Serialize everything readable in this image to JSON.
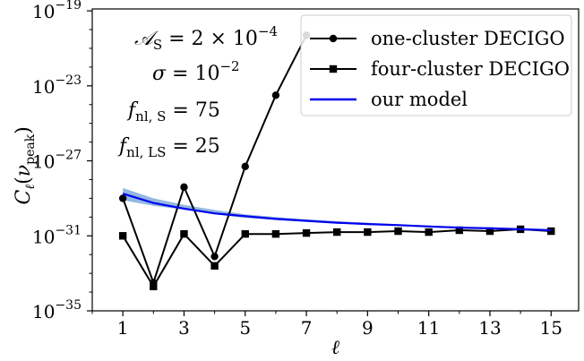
{
  "chart_data": {
    "type": "line",
    "xlabel": "ℓ",
    "ylabel": "C_ℓ(ν_peak)",
    "yscale": "log",
    "xlim": [
      0.0,
      15.9
    ],
    "ylim_exponents": [
      -35,
      -18.9
    ],
    "x_ticks": [
      1,
      3,
      5,
      7,
      9,
      11,
      13,
      15
    ],
    "y_ticks_exp": [
      -35,
      -31,
      -27,
      -23,
      -19
    ],
    "grid": false,
    "legend_position": "top-right",
    "annotations": [
      {
        "base": "𝒜",
        "sub": "S",
        "rest": " = 2 × 10",
        "sup": "−4"
      },
      {
        "base": "σ",
        "sub": "",
        "rest": " = 10",
        "sup": "−2"
      },
      {
        "base": "f",
        "sub": "nl, S",
        "rest": " = 75",
        "sup": ""
      },
      {
        "base": "f",
        "sub": "nl, LS",
        "rest": " = 25",
        "sup": ""
      }
    ],
    "series": [
      {
        "name": "one-cluster DECIGO",
        "marker": "circle",
        "color": "#000000",
        "x": [
          1,
          2,
          3,
          4,
          5,
          6,
          7
        ],
        "log10_y": [
          -29.0,
          -33.5,
          -28.4,
          -32.1,
          -27.3,
          -23.5,
          -20.3
        ]
      },
      {
        "name": "four-cluster DECIGO",
        "marker": "square",
        "color": "#000000",
        "x": [
          1,
          2,
          3,
          4,
          5,
          6,
          7,
          8,
          9,
          10,
          11,
          12,
          13,
          14,
          15
        ],
        "log10_y": [
          -31.0,
          -33.7,
          -30.9,
          -32.6,
          -30.9,
          -30.9,
          -30.85,
          -30.8,
          -30.8,
          -30.75,
          -30.8,
          -30.7,
          -30.75,
          -30.65,
          -30.75
        ]
      },
      {
        "name": "our model",
        "marker": "none",
        "color": "#0000ee",
        "band_color": "#8cb4de",
        "x": [
          1,
          2,
          3,
          4,
          5,
          6,
          7,
          8,
          9,
          10,
          11,
          12,
          13,
          14,
          15
        ],
        "log10_y": [
          -28.75,
          -29.25,
          -29.55,
          -29.8,
          -29.95,
          -30.1,
          -30.2,
          -30.3,
          -30.37,
          -30.43,
          -30.5,
          -30.56,
          -30.6,
          -30.65,
          -30.7
        ],
        "log10_band_low": [
          -29.1,
          -29.4,
          -29.6,
          -29.85,
          -30.05,
          -30.15,
          -30.25,
          -30.35,
          -30.42,
          -30.48,
          -30.55,
          -30.6,
          -30.64,
          -30.7,
          -30.75
        ],
        "log10_band_high": [
          -28.45,
          -29.0,
          -29.35,
          -29.62,
          -29.85,
          -30.0,
          -30.12,
          -30.22,
          -30.3,
          -30.38,
          -30.45,
          -30.52,
          -30.57,
          -30.62,
          -30.67
        ]
      }
    ]
  }
}
